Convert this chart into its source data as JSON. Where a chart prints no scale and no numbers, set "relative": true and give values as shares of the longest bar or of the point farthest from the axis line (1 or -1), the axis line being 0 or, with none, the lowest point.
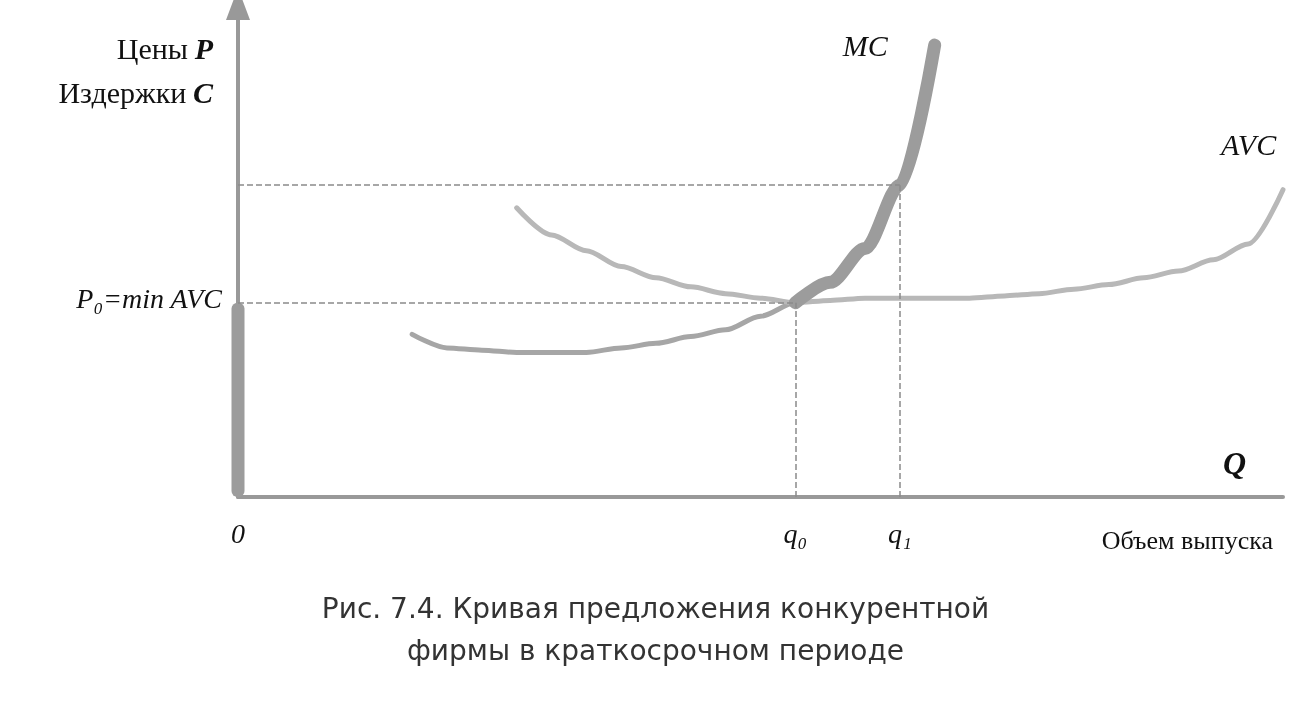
{
  "chart_data": {
    "type": "line",
    "title": "Рис. 7.4. Кривая предложения конкурентной фирмы в краткосрочном периоде",
    "xlabel": "Объем выпуска",
    "ylabel": "Цены P\nИздержки C",
    "annotations": [
      "Q",
      {
        "text": "P₀=min AVC",
        "x": "0",
        "y": 0.43
      }
    ],
    "relative": true,
    "grid": false,
    "tick_labels": "x",
    "marker": "none",
    "categories": [
      "0",
      null,
      null,
      null,
      null,
      null,
      null,
      null,
      null,
      null,
      null,
      null,
      null,
      null,
      null,
      null,
      "q₀",
      null,
      null,
      "q₁",
      null,
      null,
      null,
      null,
      null,
      null,
      null,
      null,
      null,
      null,
      null
    ],
    "ref_lines": [
      {
        "axis": "y",
        "value": 0.43,
        "color": "#8a8a8a",
        "line_style": "dashed"
      },
      {
        "axis": "y",
        "value": 0.69,
        "color": "#8a8a8a",
        "line_style": "dashed"
      },
      {
        "axis": "x",
        "value": "q₀",
        "color": "#8a8a8a",
        "line_style": "dashed"
      },
      {
        "axis": "x",
        "value": "q₁",
        "color": "#8a8a8a",
        "line_style": "dashed"
      }
    ],
    "series": [
      {
        "name": "MC",
        "color": "#a6a6a6",
        "values": [
          null,
          null,
          null,
          null,
          null,
          0.36,
          0.33,
          0.325,
          0.32,
          0.32,
          0.32,
          0.33,
          0.34,
          0.355,
          0.37,
          0.4,
          0.43,
          0.475,
          0.55,
          0.69,
          1,
          null,
          null,
          null,
          null,
          null,
          null,
          null,
          null,
          null,
          null
        ]
      },
      {
        "name": "AVC",
        "color": "#b8b8b8",
        "values": [
          null,
          null,
          null,
          null,
          null,
          null,
          null,
          null,
          0.64,
          0.58,
          0.545,
          0.51,
          0.485,
          0.465,
          0.45,
          0.44,
          0.43,
          0.435,
          0.44,
          0.44,
          0.44,
          0.44,
          0.445,
          0.45,
          0.46,
          0.47,
          0.485,
          0.5,
          0.525,
          0.56,
          0.68
        ]
      },
      {
        "color": "#9c9c9c",
        "values": [
          null,
          null,
          null,
          null,
          null,
          null,
          null,
          null,
          null,
          null,
          null,
          null,
          null,
          null,
          null,
          null,
          0.43,
          0.475,
          0.55,
          0.69,
          1,
          null,
          null,
          null,
          null,
          null,
          null,
          null,
          null,
          null,
          null
        ]
      },
      {
        "type": "bar",
        "color": "#9c9c9c",
        "values": [
          0.43,
          null,
          null,
          null,
          null,
          null,
          null,
          null,
          null,
          null,
          null,
          null,
          null,
          null,
          null,
          null,
          null,
          null,
          null,
          null,
          null,
          null,
          null,
          null,
          null,
          null,
          null,
          null,
          null,
          null,
          null
        ]
      }
    ]
  }
}
